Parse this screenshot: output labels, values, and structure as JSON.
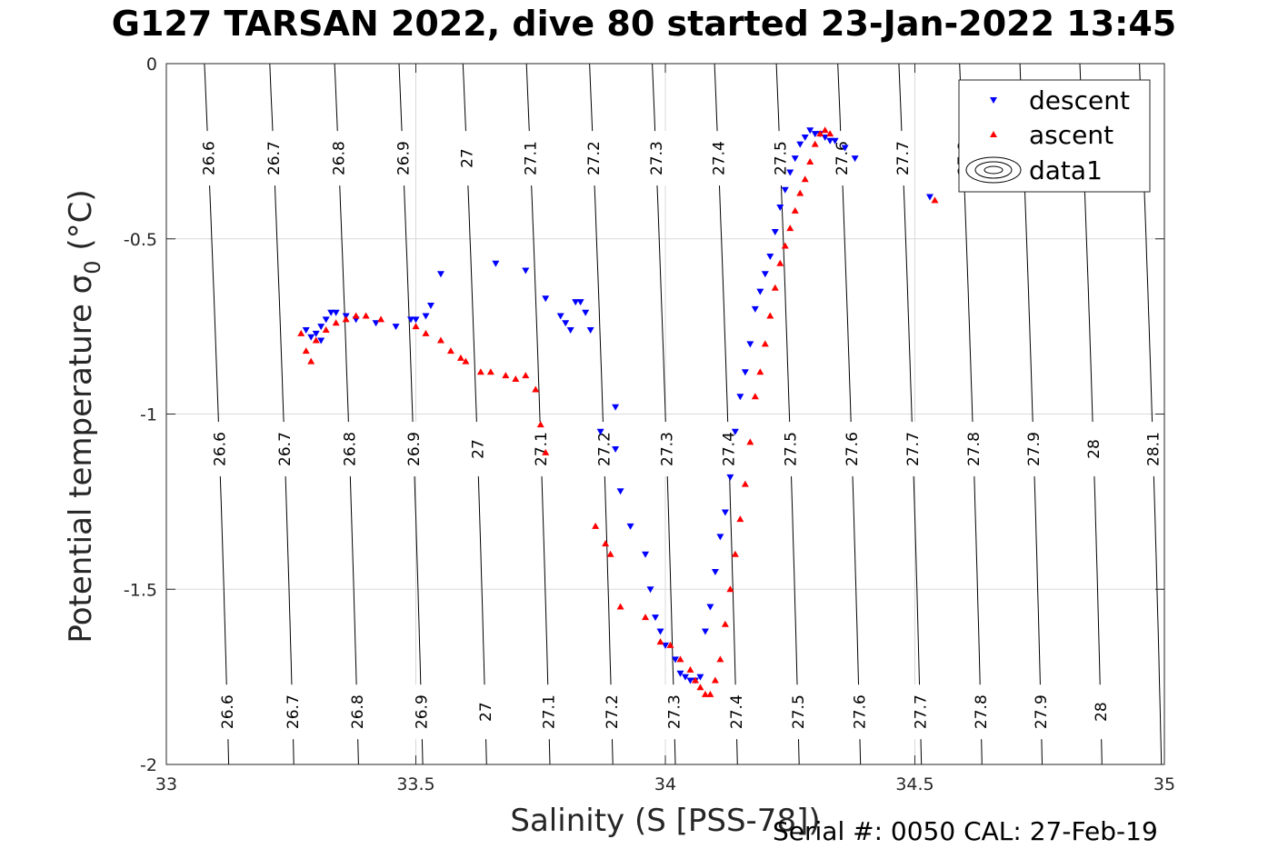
{
  "title": "G127 TARSAN 2022, dive 80 started 23-Jan-2022 13:45",
  "footer": "Serial #: 0050  CAL: 27-Feb-19",
  "chart_data": {
    "type": "scatter",
    "title": "G127 TARSAN 2022, dive 80 started 23-Jan-2022 13:45",
    "xlabel": "Salinity (S [PSS-78])",
    "ylabel": "Potential temperature σ₀ (°C)",
    "xlim": [
      33,
      35
    ],
    "ylim": [
      -2,
      0
    ],
    "xticks": [
      33,
      33.5,
      34,
      34.5,
      35
    ],
    "xtick_labels": [
      "33",
      "33.5",
      "34",
      "34.5",
      "35"
    ],
    "yticks": [
      0,
      -0.5,
      -1,
      -1.5,
      -2
    ],
    "ytick_labels": [
      "0",
      "-0.5",
      "-1",
      "-1.5",
      "-2"
    ],
    "grid": true,
    "legend_position": "top-right",
    "legend": [
      "descent",
      "ascent",
      "data1"
    ],
    "colors": {
      "descent": "#0000ff",
      "ascent": "#ff0000",
      "contour": "#000000",
      "grid": "#d9d9d9"
    },
    "contours": {
      "levels": [
        26.6,
        26.7,
        26.8,
        26.9,
        27,
        27.1,
        27.2,
        27.3,
        27.4,
        27.5,
        27.6,
        27.7,
        27.8,
        27.9,
        28,
        28.1
      ],
      "level_labels": [
        "26.6",
        "26.7",
        "26.8",
        "26.9",
        "27",
        "27.1",
        "27.2",
        "27.3",
        "27.4",
        "27.5",
        "27.6",
        "27.7",
        "27.8",
        "27.9",
        "28",
        "28.1"
      ]
    },
    "series": [
      {
        "name": "descent",
        "marker": "triangle-down",
        "x": [
          33.28,
          33.29,
          33.3,
          33.31,
          33.31,
          33.32,
          33.33,
          33.34,
          33.36,
          33.38,
          33.42,
          33.46,
          33.49,
          33.5,
          33.52,
          33.53,
          33.55,
          33.66,
          33.72,
          33.76,
          33.79,
          33.8,
          33.81,
          33.82,
          33.83,
          33.84,
          33.85,
          33.87,
          33.9,
          33.9,
          33.91,
          33.93,
          33.96,
          33.97,
          33.98,
          33.99,
          34.0,
          34.02,
          34.03,
          34.04,
          34.05,
          34.06,
          34.07,
          34.08,
          34.09,
          34.1,
          34.11,
          34.12,
          34.13,
          34.14,
          34.15,
          34.16,
          34.17,
          34.18,
          34.19,
          34.2,
          34.21,
          34.22,
          34.23,
          34.24,
          34.25,
          34.26,
          34.27,
          34.28,
          34.29,
          34.3,
          34.31,
          34.32,
          34.33,
          34.34,
          34.36,
          34.38,
          34.53
        ],
        "y": [
          -0.76,
          -0.78,
          -0.77,
          -0.79,
          -0.75,
          -0.73,
          -0.71,
          -0.71,
          -0.72,
          -0.73,
          -0.74,
          -0.75,
          -0.73,
          -0.73,
          -0.72,
          -0.69,
          -0.6,
          -0.57,
          -0.59,
          -0.67,
          -0.72,
          -0.74,
          -0.76,
          -0.68,
          -0.68,
          -0.71,
          -0.76,
          -1.05,
          -0.98,
          -1.1,
          -1.22,
          -1.32,
          -1.4,
          -1.5,
          -1.58,
          -1.62,
          -1.66,
          -1.7,
          -1.74,
          -1.75,
          -1.76,
          -1.76,
          -1.75,
          -1.62,
          -1.55,
          -1.45,
          -1.35,
          -1.28,
          -1.18,
          -1.05,
          -0.95,
          -0.88,
          -0.8,
          -0.7,
          -0.65,
          -0.6,
          -0.55,
          -0.48,
          -0.41,
          -0.36,
          -0.31,
          -0.27,
          -0.23,
          -0.21,
          -0.19,
          -0.2,
          -0.2,
          -0.21,
          -0.22,
          -0.22,
          -0.24,
          -0.27,
          -0.38
        ]
      },
      {
        "name": "ascent",
        "marker": "triangle-up",
        "x": [
          33.27,
          33.28,
          33.29,
          33.3,
          33.32,
          33.34,
          33.36,
          33.38,
          33.4,
          33.43,
          33.5,
          33.52,
          33.55,
          33.57,
          33.59,
          33.6,
          33.63,
          33.65,
          33.68,
          33.7,
          33.72,
          33.74,
          33.75,
          33.76,
          33.86,
          33.88,
          33.89,
          33.91,
          33.96,
          33.99,
          34.01,
          34.03,
          34.05,
          34.06,
          34.07,
          34.08,
          34.09,
          34.1,
          34.11,
          34.12,
          34.13,
          34.14,
          34.15,
          34.16,
          34.17,
          34.18,
          34.19,
          34.2,
          34.21,
          34.22,
          34.23,
          34.24,
          34.25,
          34.26,
          34.27,
          34.28,
          34.29,
          34.3,
          34.31,
          34.32,
          34.33,
          34.54
        ],
        "y": [
          -0.77,
          -0.82,
          -0.85,
          -0.79,
          -0.76,
          -0.74,
          -0.73,
          -0.72,
          -0.72,
          -0.73,
          -0.75,
          -0.77,
          -0.79,
          -0.82,
          -0.84,
          -0.85,
          -0.88,
          -0.88,
          -0.89,
          -0.9,
          -0.89,
          -0.93,
          -1.03,
          -1.11,
          -1.32,
          -1.37,
          -1.4,
          -1.55,
          -1.58,
          -1.65,
          -1.66,
          -1.7,
          -1.73,
          -1.76,
          -1.78,
          -1.8,
          -1.8,
          -1.76,
          -1.7,
          -1.6,
          -1.5,
          -1.4,
          -1.3,
          -1.2,
          -1.08,
          -0.95,
          -0.88,
          -0.8,
          -0.72,
          -0.64,
          -0.57,
          -0.52,
          -0.47,
          -0.42,
          -0.37,
          -0.33,
          -0.28,
          -0.23,
          -0.2,
          -0.19,
          -0.2,
          -0.39
        ]
      }
    ]
  }
}
